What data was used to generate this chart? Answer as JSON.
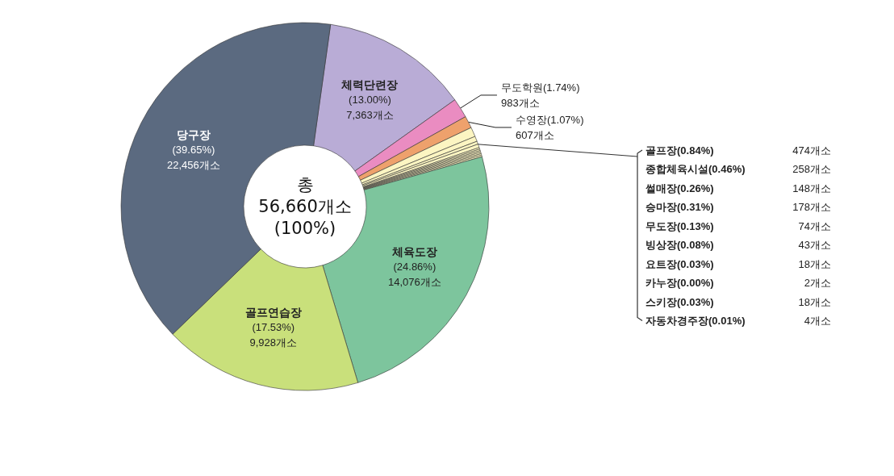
{
  "chart_data": {
    "type": "donut",
    "annotations": [
      "총\n56,660개소\n(100%)"
    ],
    "categories": [
      "체력단련장",
      "무도학원",
      "수영장",
      "골프장",
      "종합체육시설",
      "썰매장",
      "승마장",
      "무도장",
      "빙상장",
      "요트장",
      "카누장",
      "스키장",
      "자동차경주장",
      "체육도장",
      "골프연습장",
      "당구장"
    ],
    "values": [
      7363,
      983,
      607,
      474,
      258,
      148,
      178,
      74,
      43,
      18,
      2,
      18,
      4,
      14076,
      9928,
      22456
    ],
    "value_labels": [
      "(13.00%)\n7,363개소",
      "(1.74%)\n983개소",
      "(1.07%)\n607개소",
      "(0.84%)\n474개소",
      "(0.46%)\n258개소",
      "(0.26%)\n148개소",
      "(0.31%)\n178개소",
      "(0.13%)\n74개소",
      "(0.08%)\n43개소",
      "(0.03%)\n18개소",
      "(0.00%)\n2개소",
      "(0.03%)\n18개소",
      "(0.01%)\n4개소",
      "(24.86%)\n14,076개소",
      "(17.53%)\n9,928개소",
      "(39.65%)\n22,456개소"
    ],
    "colors": [
      "#b9acd6",
      "#ea8cc1",
      "#eea16c",
      "#fcf5c2",
      "#fcf5c2",
      "#fcf5c2",
      "#fcf5c2",
      "#fcf5c2",
      "#fcf5c2",
      "#fcf5c2",
      "#fcf5c2",
      "#fcf5c2",
      "#fcf5c2",
      "#7dc59d",
      "#c9e07b",
      "#5b6a80"
    ],
    "legend": false
  }
}
